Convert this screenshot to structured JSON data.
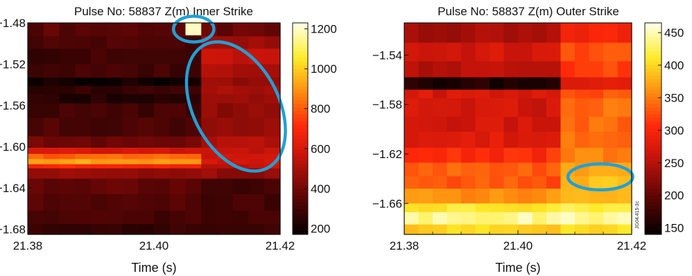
{
  "chart_data": [
    {
      "type": "heatmap",
      "title": "Pulse No: 58837 Z(m) Inner Strike",
      "xlabel": "Time (s)",
      "ylabel": "",
      "xlim": [
        21.38,
        21.42
      ],
      "ylim": [
        -1.685,
        -1.48
      ],
      "xticks": [
        "21.38",
        "21.40",
        "21.42"
      ],
      "xtick_values": [
        21.38,
        21.4,
        21.42
      ],
      "yticks": [
        "−1.48",
        "−1.52",
        "−1.56",
        "−1.60",
        "−1.64",
        "−1.68"
      ],
      "ytick_values": [
        -1.48,
        -1.52,
        -1.56,
        -1.6,
        -1.64,
        -1.68
      ],
      "colorbar": {
        "ticks": [
          "1200",
          "1000",
          "800",
          "600",
          "400",
          "200"
        ],
        "tick_values": [
          1200,
          1000,
          800,
          600,
          400,
          200
        ],
        "range": [
          170,
          1230
        ]
      },
      "grid_x": 16,
      "grid_y": 36,
      "rows": [
        {
          "y_from": -1.48,
          "y_to": -1.493,
          "left": 360,
          "right": 380,
          "values": []
        },
        {
          "y_from": -1.493,
          "y_to": -1.505,
          "left": 330,
          "right": 480
        },
        {
          "y_from": -1.505,
          "y_to": -1.52,
          "left": 300,
          "right": 560
        },
        {
          "y_from": -1.52,
          "y_to": -1.533,
          "left": 310,
          "right": 520
        },
        {
          "y_from": -1.533,
          "y_to": -1.541,
          "left": 210,
          "right": 480
        },
        {
          "y_from": -1.541,
          "y_to": -1.549,
          "left": 280,
          "right": 500
        },
        {
          "y_from": -1.549,
          "y_to": -1.558,
          "left": 250,
          "right": 470
        },
        {
          "y_from": -1.558,
          "y_to": -1.572,
          "left": 310,
          "right": 460
        },
        {
          "y_from": -1.572,
          "y_to": -1.59,
          "left": 330,
          "right": 480
        },
        {
          "y_from": -1.59,
          "y_to": -1.601,
          "left": 400,
          "right": 520
        },
        {
          "y_from": -1.601,
          "y_to": -1.607,
          "left": 600,
          "right": 560
        },
        {
          "y_from": -1.607,
          "y_to": -1.612,
          "left": 820,
          "right": 580
        },
        {
          "y_from": -1.612,
          "y_to": -1.617,
          "left": 930,
          "right": 600
        },
        {
          "y_from": -1.617,
          "y_to": -1.621,
          "left": 700,
          "right": 560
        },
        {
          "y_from": -1.621,
          "y_to": -1.631,
          "left": 470,
          "right": 470
        },
        {
          "y_from": -1.631,
          "y_to": -1.646,
          "left": 380,
          "right": 300
        },
        {
          "y_from": -1.646,
          "y_to": -1.662,
          "left": 340,
          "right": 310
        },
        {
          "y_from": -1.662,
          "y_to": -1.675,
          "left": 310,
          "right": 300
        },
        {
          "y_from": -1.675,
          "y_to": -1.685,
          "left": 280,
          "right": 290
        }
      ],
      "step_time": 21.408,
      "hot_spot": {
        "t_from": 21.405,
        "t_to": 21.4075,
        "z_from": -1.478,
        "z_to": -1.492,
        "value": 1200
      },
      "annotations": [
        {
          "shape": "ellipse",
          "cx": 21.4063,
          "cy": -1.486,
          "rx_t": 0.0032,
          "ry_z": 0.0125,
          "angle": 0
        },
        {
          "shape": "ellipse",
          "cx": 21.413,
          "cy": -1.561,
          "rx_t": 0.0068,
          "ry_z": 0.067,
          "angle": -27
        }
      ]
    },
    {
      "type": "heatmap",
      "title": "Pulse No: 58837 Z(m) Outer Strike",
      "xlabel": "Time (s)",
      "ylabel": "",
      "xlim": [
        21.38,
        21.42
      ],
      "ylim": [
        -1.685,
        -1.514
      ],
      "xticks": [
        "21.38",
        "21.40",
        "21.42"
      ],
      "xtick_values": [
        21.38,
        21.4,
        21.42
      ],
      "yticks": [
        "−1.54",
        "−1.58",
        "−1.62",
        "−1.66"
      ],
      "ytick_values": [
        -1.54,
        -1.58,
        -1.62,
        -1.66
      ],
      "colorbar": {
        "ticks": [
          "450",
          "400",
          "350",
          "300",
          "250",
          "200",
          "150"
        ],
        "tick_values": [
          450,
          400,
          350,
          300,
          250,
          200,
          150
        ],
        "range": [
          140,
          465
        ]
      },
      "grid_x": 16,
      "grid_y": 34,
      "rows": [
        {
          "y_from": -1.514,
          "y_to": -1.53,
          "left": 240,
          "right": 300
        },
        {
          "y_from": -1.53,
          "y_to": -1.545,
          "left": 270,
          "right": 330
        },
        {
          "y_from": -1.545,
          "y_to": -1.558,
          "left": 255,
          "right": 320
        },
        {
          "y_from": -1.558,
          "y_to": -1.568,
          "left": 160,
          "right": 290
        },
        {
          "y_from": -1.568,
          "y_to": -1.575,
          "left": 275,
          "right": 330
        },
        {
          "y_from": -1.575,
          "y_to": -1.59,
          "left": 270,
          "right": 345
        },
        {
          "y_from": -1.59,
          "y_to": -1.602,
          "left": 270,
          "right": 340
        },
        {
          "y_from": -1.602,
          "y_to": -1.615,
          "left": 280,
          "right": 350
        },
        {
          "y_from": -1.615,
          "y_to": -1.627,
          "left": 310,
          "right": 355
        },
        {
          "y_from": -1.627,
          "y_to": -1.638,
          "left": 335,
          "right": 370
        },
        {
          "y_from": -1.638,
          "y_to": -1.648,
          "left": 330,
          "right": 385
        },
        {
          "y_from": -1.648,
          "y_to": -1.66,
          "left": 360,
          "right": 375
        },
        {
          "y_from": -1.66,
          "y_to": -1.667,
          "left": 410,
          "right": 420
        },
        {
          "y_from": -1.667,
          "y_to": -1.677,
          "left": 445,
          "right": 445
        },
        {
          "y_from": -1.677,
          "y_to": -1.685,
          "left": 400,
          "right": 410
        }
      ],
      "step_time": 21.408,
      "annotations": [
        {
          "shape": "ellipse",
          "cx": 21.4145,
          "cy": -1.6385,
          "rx_t": 0.0057,
          "ry_z": 0.0105,
          "angle": 0
        }
      ],
      "watermark": "JG04.415-3c"
    }
  ],
  "colors": {
    "annotation": "#22a0d4",
    "axis": "#111111"
  }
}
